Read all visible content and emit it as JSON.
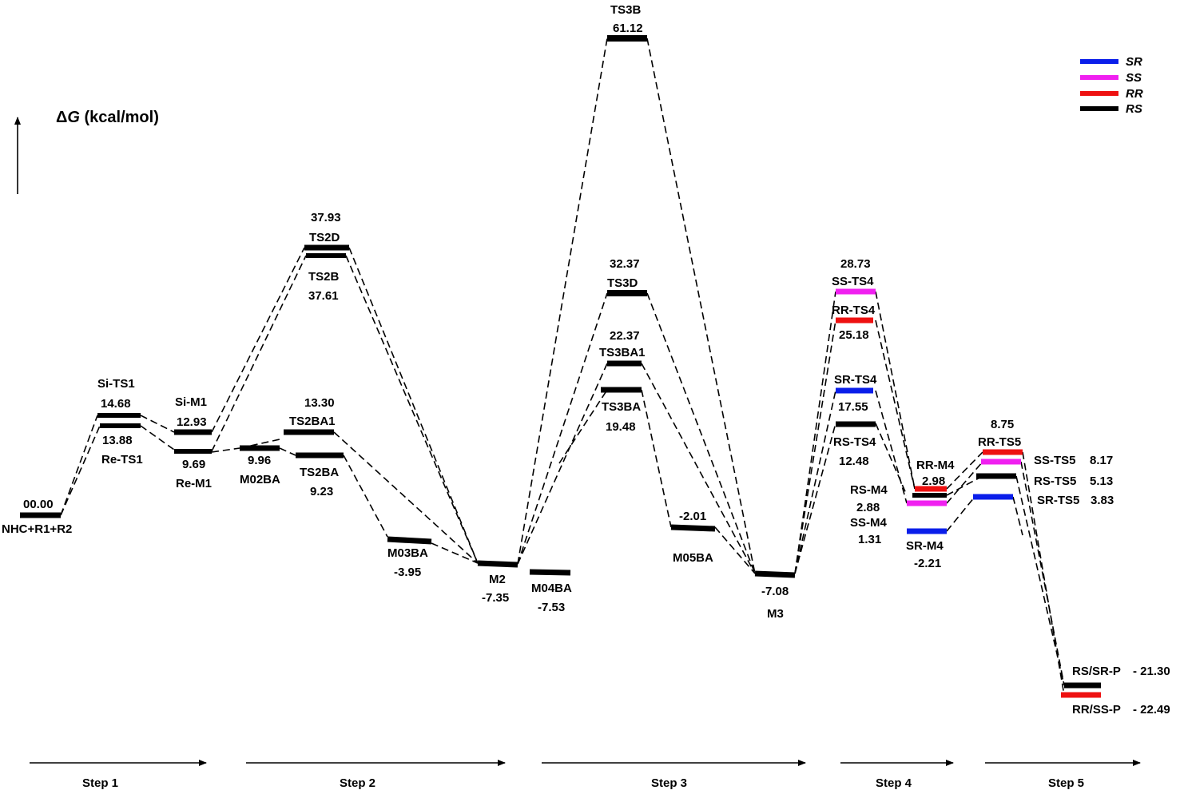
{
  "colors": {
    "SR": "#0a1eea",
    "SS": "#f020f0",
    "RR": "#ee1111",
    "RS": "#000000"
  },
  "axis": {
    "delta": "Δ",
    "g": "G",
    "unit": " (kcal/mol)"
  },
  "legend": [
    {
      "label": "SR",
      "color": "#0a1eea"
    },
    {
      "label": "SS",
      "color": "#f020f0"
    },
    {
      "label": "RR",
      "color": "#ee1111"
    },
    {
      "label": "RS",
      "color": "#000000"
    }
  ],
  "steps": [
    "Step 1",
    "Step 2",
    "Step 3",
    "Step 4",
    "Step 5"
  ],
  "labels": {
    "reactant_val": "00.00",
    "reactant": "NHC+R1+R2",
    "si_ts1": "Si-TS1",
    "si_ts1_val": "14.68",
    "re_ts1_val": "13.88",
    "re_ts1": "Re-TS1",
    "si_m1": "Si-M1",
    "si_m1_val": "12.93",
    "re_m1_val": "9.69",
    "re_m1": "Re-M1",
    "m02ba_val": "9.96",
    "m02ba": "M02BA",
    "ts2ba1_val": "13.30",
    "ts2ba1": "TS2BA1",
    "ts2ba": "TS2BA",
    "ts2ba_val": "9.23",
    "ts2d_val": "37.93",
    "ts2d": "TS2D",
    "ts2b": "TS2B",
    "ts2b_val": "37.61",
    "m03ba": "M03BA",
    "m03ba_val": "-3.95",
    "m2": "M2",
    "m2_val": "-7.35",
    "m04ba": "M04BA",
    "m04ba_val": "-7.53",
    "ts3b": "TS3B",
    "ts3b_val": "61.12",
    "ts3d_val": "32.37",
    "ts3d": "TS3D",
    "ts3ba1_val": "22.37",
    "ts3ba1": "TS3BA1",
    "ts3ba": "TS3BA",
    "ts3ba_val": "19.48",
    "m05ba_val": "-2.01",
    "m05ba": "M05BA",
    "m3_val": "-7.08",
    "m3": "M3",
    "ss_ts4_val": "28.73",
    "ss_ts4": "SS-TS4",
    "rr_ts4": "RR-TS4",
    "rr_ts4_val": "25.18",
    "sr_ts4": "SR-TS4",
    "sr_ts4_val": "17.55",
    "rs_ts4": "RS-TS4",
    "rs_ts4_val": "12.48",
    "rr_m4": "RR-M4",
    "rr_m4_val": "2.98",
    "rs_m4": "RS-M4",
    "rs_m4_val": "2.88",
    "ss_m4": "SS-M4",
    "ss_m4_val": "1.31",
    "sr_m4": "SR-M4",
    "sr_m4_val": "-2.21",
    "rr_ts5_val": "8.75",
    "rr_ts5": "RR-TS5",
    "ss_ts5": "SS-TS5",
    "ss_ts5_val": "8.17",
    "rs_ts5": "RS-TS5",
    "rs_ts5_val": "5.13",
    "sr_ts5": "SR-TS5",
    "sr_ts5_val": "3.83",
    "rs_sr_p": "RS/SR-P",
    "rs_sr_p_val": "- 21.30",
    "rr_ss_p": "RR/SS-P",
    "rr_ss_p_val": "- 22.49"
  }
}
